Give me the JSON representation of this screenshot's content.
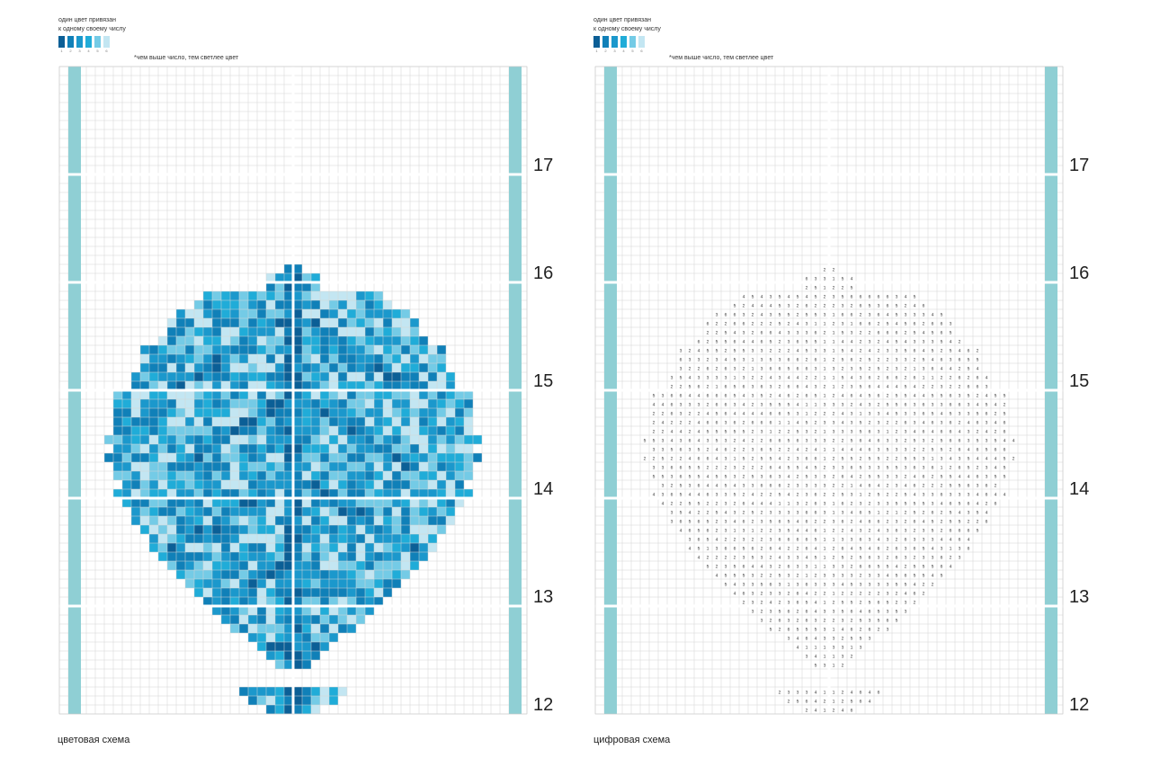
{
  "legend": {
    "line1": "один цвет привязан",
    "line2": "к одному своему числу",
    "note": "*чем выше число, тем светлее цвет",
    "numbers": [
      "1",
      "2",
      "3",
      "4",
      "5",
      "6"
    ],
    "colors": [
      "#0b5f96",
      "#1080b8",
      "#1b98cc",
      "#20acd8",
      "#74cbe6",
      "#c3e6f2"
    ]
  },
  "left": {
    "caption": "цветовая схема"
  },
  "right": {
    "caption": "цифровая схема"
  },
  "sections": [
    "17",
    "16",
    "15",
    "14",
    "13",
    "12"
  ]
}
